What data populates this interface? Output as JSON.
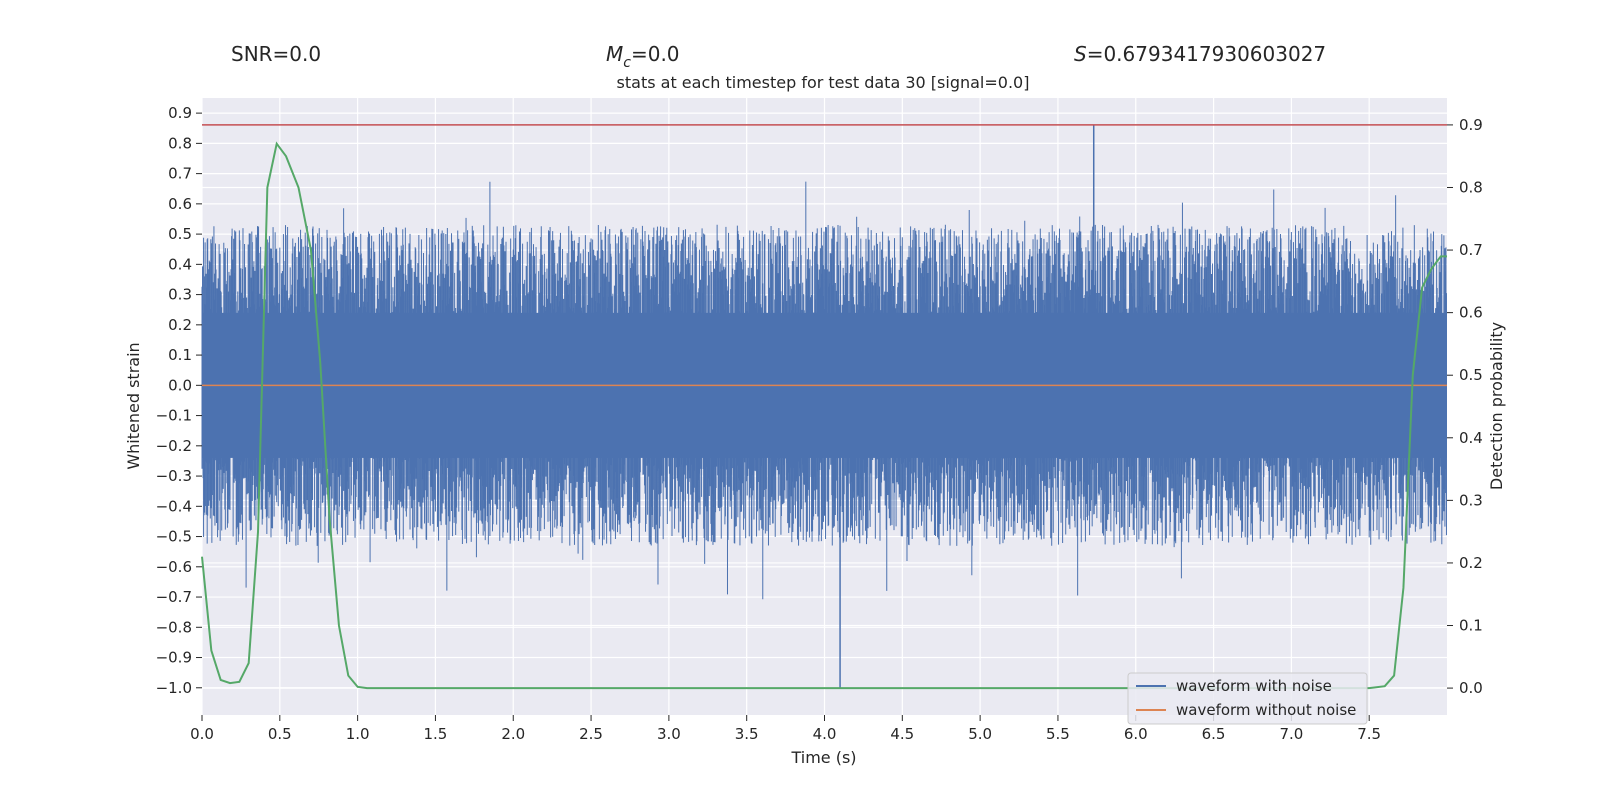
{
  "chart_data": {
    "type": "line",
    "title": "stats at each timestep for test data 30 [signal=0.0]",
    "stats": {
      "snr": "SNR=0.0",
      "mc_symbol": "M",
      "mc_sub": "c",
      "mc_value": "=0.0",
      "s_symbol": "S",
      "s_value": "=0.6793417930603027"
    },
    "xlabel": "Time (s)",
    "ylabel_left": "Whitened strain",
    "ylabel_right": "Detection probability",
    "xlim": [
      0.0,
      8.0
    ],
    "ylim_left": [
      -1.09,
      0.95
    ],
    "ylim_right": [
      -0.043,
      0.943
    ],
    "x_ticks": [
      0.0,
      0.5,
      1.0,
      1.5,
      2.0,
      2.5,
      3.0,
      3.5,
      4.0,
      4.5,
      5.0,
      5.5,
      6.0,
      6.5,
      7.0,
      7.5
    ],
    "x_tick_labels": [
      "0.0",
      "0.5",
      "1.0",
      "1.5",
      "2.0",
      "2.5",
      "3.0",
      "3.5",
      "4.0",
      "4.5",
      "5.0",
      "5.5",
      "6.0",
      "6.5",
      "7.0",
      "7.5"
    ],
    "y_left_ticks": [
      0.9,
      0.8,
      0.7,
      0.6,
      0.5,
      0.4,
      0.3,
      0.2,
      0.1,
      0.0,
      -0.1,
      -0.2,
      -0.3,
      -0.4,
      -0.5,
      -0.6,
      -0.7,
      -0.8,
      -0.9,
      -1.0
    ],
    "y_left_tick_labels": [
      "0.9",
      "0.8",
      "0.7",
      "0.6",
      "0.5",
      "0.4",
      "0.3",
      "0.2",
      "0.1",
      "0.0",
      "−0.1",
      "−0.2",
      "−0.3",
      "−0.4",
      "−0.5",
      "−0.6",
      "−0.7",
      "−0.8",
      "−0.9",
      "−1.0"
    ],
    "y_right_ticks": [
      0.9,
      0.8,
      0.7,
      0.6,
      0.5,
      0.4,
      0.3,
      0.2,
      0.1,
      0.0
    ],
    "y_right_tick_labels": [
      "0.9",
      "0.8",
      "0.7",
      "0.6",
      "0.5",
      "0.4",
      "0.3",
      "0.2",
      "0.1",
      "0.0"
    ],
    "threshold": 0.9,
    "noise_envelope": {
      "upper_typical": 0.45,
      "lower_typical": -0.45,
      "peak_max": 0.86,
      "peak_min": -1.0,
      "peak_max_time": 5.73,
      "peak_min_time": 4.1
    },
    "series": [
      {
        "name": "waveform with noise",
        "axis": "left",
        "style": "dense-noise",
        "color": "#4c72b0"
      },
      {
        "name": "waveform without noise",
        "axis": "left",
        "color": "#dd8452",
        "x": [
          0.0,
          8.0
        ],
        "values": [
          0.0,
          0.0
        ]
      },
      {
        "name": "detection probability",
        "axis": "right",
        "color": "#55a868",
        "x": [
          0.0,
          0.06,
          0.12,
          0.18,
          0.24,
          0.3,
          0.36,
          0.42,
          0.48,
          0.54,
          0.62,
          0.7,
          0.76,
          0.82,
          0.88,
          0.94,
          1.0,
          1.06,
          1.5,
          3.0,
          5.0,
          7.0,
          7.5,
          7.6,
          7.66,
          7.72,
          7.78,
          7.84,
          7.9,
          7.96,
          8.0
        ],
        "values": [
          0.21,
          0.06,
          0.013,
          0.008,
          0.01,
          0.04,
          0.25,
          0.8,
          0.87,
          0.85,
          0.8,
          0.7,
          0.52,
          0.27,
          0.1,
          0.02,
          0.002,
          0.0,
          0.0,
          0.0,
          0.0,
          0.0,
          0.0,
          0.003,
          0.02,
          0.16,
          0.5,
          0.64,
          0.67,
          0.69,
          0.69
        ]
      }
    ],
    "legend": {
      "position": "bottom-right",
      "entries": [
        {
          "label": "waveform with noise",
          "color": "#4c72b0"
        },
        {
          "label": "waveform without noise",
          "color": "#dd8452"
        }
      ]
    },
    "threshold_color": "#c44e52",
    "background": "#eaeaf2",
    "grid": true
  }
}
